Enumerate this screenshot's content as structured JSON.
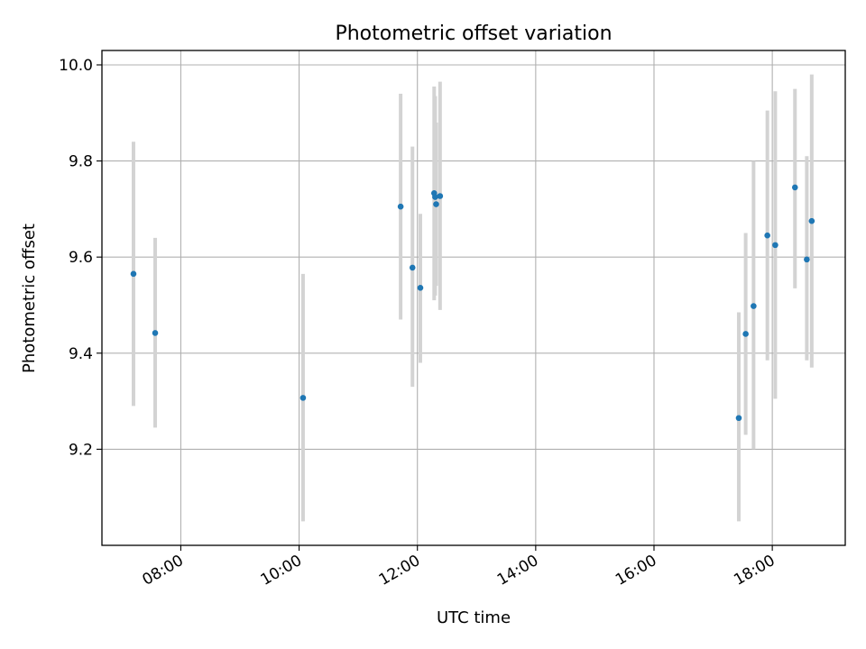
{
  "chart_data": {
    "type": "scatter",
    "title": "Photometric offset variation",
    "xlabel": "UTC time",
    "ylabel": "Photometric offset",
    "xlim": [
      "06:40",
      "19:14"
    ],
    "ylim": [
      9.0,
      10.03
    ],
    "x_ticks": [
      "08:00",
      "10:00",
      "12:00",
      "14:00",
      "16:00",
      "18:00"
    ],
    "y_ticks": [
      9.2,
      9.4,
      9.6,
      9.8,
      10.0
    ],
    "grid": true,
    "marker_color": "#1f77b4",
    "errorbar_color": "#d3d3d3",
    "points": [
      {
        "x": "07:12",
        "y": 9.565,
        "low": 9.29,
        "high": 9.84
      },
      {
        "x": "07:34",
        "y": 9.442,
        "low": 9.245,
        "high": 9.64
      },
      {
        "x": "10:04",
        "y": 9.307,
        "low": 9.05,
        "high": 9.565
      },
      {
        "x": "11:43",
        "y": 9.705,
        "low": 9.47,
        "high": 9.94
      },
      {
        "x": "11:55",
        "y": 9.578,
        "low": 9.33,
        "high": 9.83
      },
      {
        "x": "12:03",
        "y": 9.536,
        "low": 9.38,
        "high": 9.69
      },
      {
        "x": "12:17",
        "y": 9.733,
        "low": 9.51,
        "high": 9.955
      },
      {
        "x": "12:18",
        "y": 9.725,
        "low": 9.52,
        "high": 9.935
      },
      {
        "x": "12:19",
        "y": 9.71,
        "low": 9.54,
        "high": 9.88
      },
      {
        "x": "12:23",
        "y": 9.727,
        "low": 9.49,
        "high": 9.965
      },
      {
        "x": "17:26",
        "y": 9.265,
        "low": 9.05,
        "high": 9.485
      },
      {
        "x": "17:33",
        "y": 9.44,
        "low": 9.23,
        "high": 9.65
      },
      {
        "x": "17:41",
        "y": 9.498,
        "low": 9.2,
        "high": 9.8
      },
      {
        "x": "17:55",
        "y": 9.645,
        "low": 9.385,
        "high": 9.905
      },
      {
        "x": "18:03",
        "y": 9.625,
        "low": 9.305,
        "high": 9.945
      },
      {
        "x": "18:23",
        "y": 9.745,
        "low": 9.535,
        "high": 9.95
      },
      {
        "x": "18:35",
        "y": 9.595,
        "low": 9.385,
        "high": 9.81
      },
      {
        "x": "18:40",
        "y": 9.675,
        "low": 9.37,
        "high": 9.98
      }
    ]
  }
}
